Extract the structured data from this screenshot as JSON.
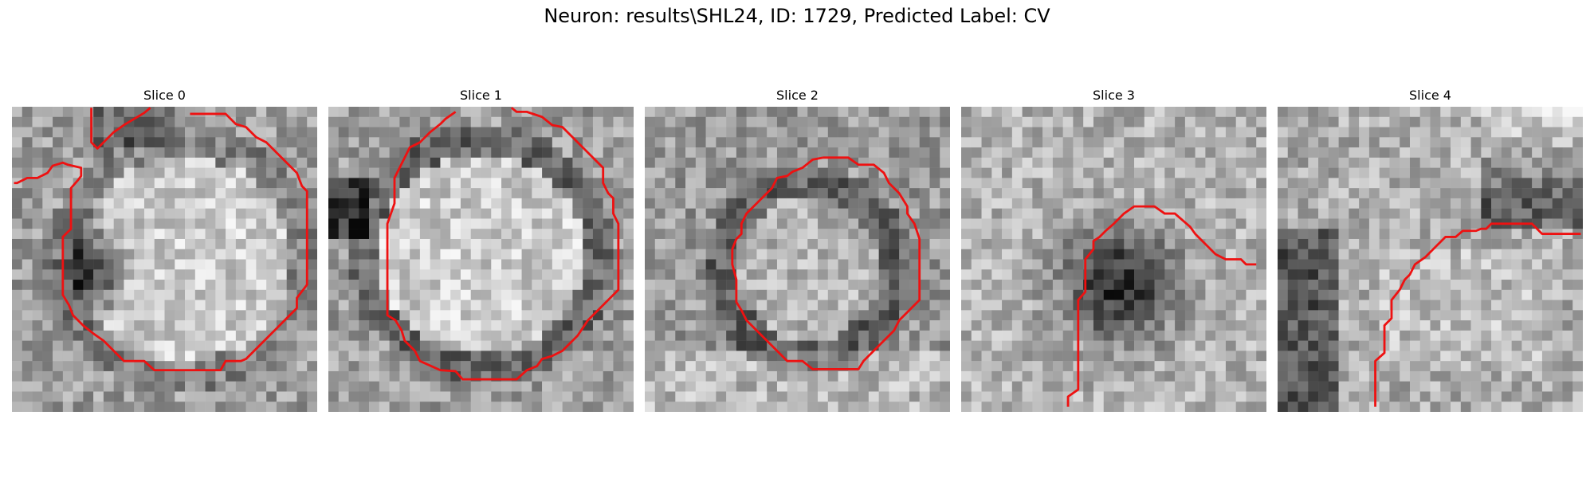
{
  "figure": {
    "title": "Neuron: results\\SHL24, ID: 1729, Predicted Label: CV"
  },
  "colors": {
    "contour": "#ee1111",
    "background": "#ffffff"
  },
  "panels": [
    {
      "label": "Slice 0",
      "texture": "grayscale-noise-vesicle",
      "contour_shape": "large-ring"
    },
    {
      "label": "Slice 1",
      "texture": "grayscale-noise-vesicle",
      "contour_shape": "large-ring"
    },
    {
      "label": "Slice 2",
      "texture": "grayscale-noise-vesicle",
      "contour_shape": "ring"
    },
    {
      "label": "Slice 3",
      "texture": "grayscale-noise-dark-blob",
      "contour_shape": "partial-arc"
    },
    {
      "label": "Slice 4",
      "texture": "grayscale-noise-dark-band",
      "contour_shape": "partial-arc"
    }
  ]
}
